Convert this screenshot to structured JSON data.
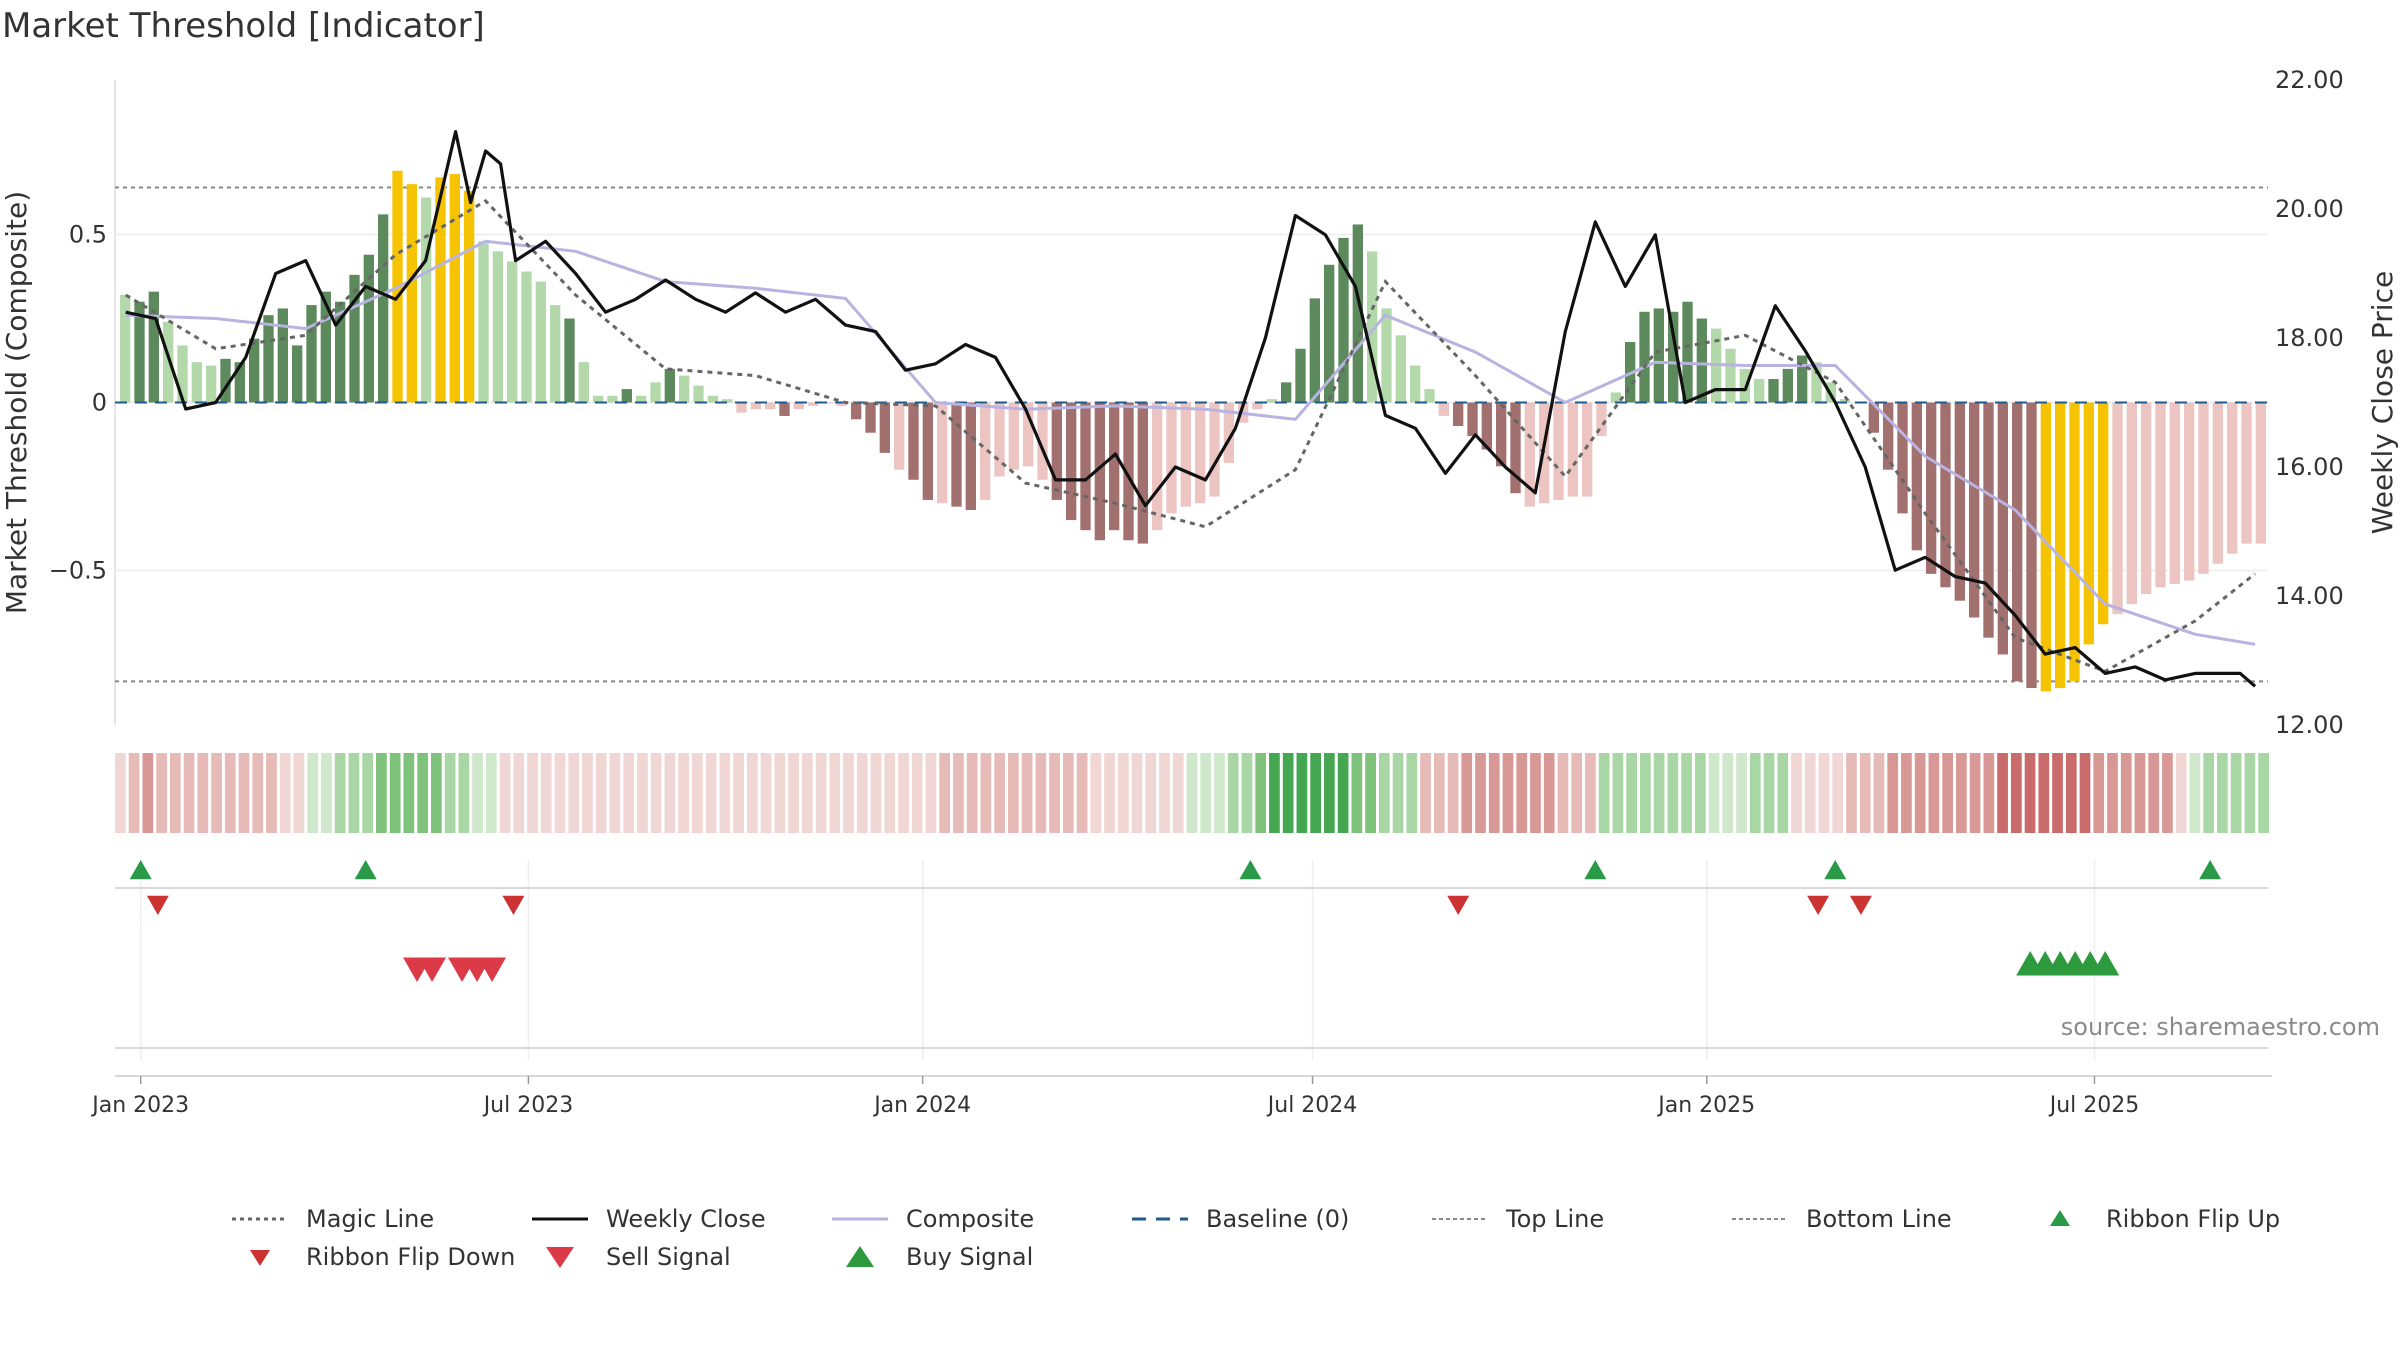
{
  "title": "Market Threshold [Indicator]",
  "source": "source: sharemaestro.com",
  "colors": {
    "green_dark": "#5d8a5d",
    "green_light": "#b3d9ab",
    "red_dark": "#a1706f",
    "red_light": "#ecc4c1",
    "gold": "#f5c300",
    "composite": "#b8b3e0",
    "close": "#111111",
    "magic": "#666666",
    "baseline": "#1f5a8a",
    "ribbon_flip_up": "#2a9a48",
    "ribbon_flip_down": "#cc3333",
    "sell": "#dd3a48",
    "buy": "#2e9a3e"
  },
  "chart_data": {
    "type": "bar",
    "title": "Market Threshold [Indicator]",
    "ylabel": "Market Threshold (Composite)",
    "y2label": "Weekly Close Price",
    "ylim": [
      -0.96,
      0.96
    ],
    "y2lim": [
      12.0,
      22.0
    ],
    "xlim": [
      "2022-12-20",
      "2025-09-20"
    ],
    "x_ticks": [
      "Jan 2023",
      "Jul 2023",
      "Jan 2024",
      "Jul 2024",
      "Jan 2025",
      "Jul 2025"
    ],
    "x_tick_dates": [
      "2023-01-01",
      "2023-07-01",
      "2024-01-01",
      "2024-07-01",
      "2025-01-01",
      "2025-07-01"
    ],
    "y_ticks": [
      "0.5",
      "0",
      "−0.5"
    ],
    "y_tick_values": [
      0.5,
      0,
      -0.5
    ],
    "y2_ticks": [
      "22.00",
      "20.00",
      "18.00",
      "16.00",
      "14.00",
      "12.00"
    ],
    "y2_tick_values": [
      22,
      20,
      18,
      16,
      14,
      12
    ],
    "top_line": 0.64,
    "bottom_line": -0.83,
    "grid": true,
    "legend_position": "bottom",
    "histogram_bars": [
      0.32,
      0.3,
      0.33,
      0.24,
      0.17,
      0.12,
      0.11,
      0.13,
      0.12,
      0.19,
      0.26,
      0.28,
      0.17,
      0.29,
      0.33,
      0.3,
      0.38,
      0.44,
      0.56,
      0.69,
      0.65,
      0.61,
      0.67,
      0.68,
      0.63,
      0.48,
      0.45,
      0.42,
      0.39,
      0.36,
      0.29,
      0.25,
      0.12,
      0.02,
      0.02,
      0.04,
      0.02,
      0.06,
      0.1,
      0.08,
      0.05,
      0.02,
      0.01,
      -0.03,
      -0.02,
      -0.02,
      -0.04,
      -0.02,
      -0.01,
      0.0,
      -0.01,
      -0.05,
      -0.09,
      -0.15,
      -0.2,
      -0.23,
      -0.29,
      -0.3,
      -0.31,
      -0.32,
      -0.29,
      -0.22,
      -0.2,
      -0.19,
      -0.23,
      -0.29,
      -0.35,
      -0.38,
      -0.41,
      -0.38,
      -0.41,
      -0.42,
      -0.38,
      -0.33,
      -0.31,
      -0.3,
      -0.28,
      -0.18,
      -0.06,
      -0.02,
      0.01,
      0.06,
      0.16,
      0.31,
      0.41,
      0.49,
      0.53,
      0.45,
      0.28,
      0.2,
      0.11,
      0.04,
      -0.04,
      -0.07,
      -0.1,
      -0.14,
      -0.19,
      -0.27,
      -0.31,
      -0.3,
      -0.29,
      -0.28,
      -0.28,
      -0.1,
      0.03,
      0.18,
      0.27,
      0.28,
      0.27,
      0.3,
      0.25,
      0.22,
      0.16,
      0.1,
      0.07,
      0.07,
      0.1,
      0.14,
      0.12,
      0.06,
      0.01,
      0.0,
      -0.09,
      -0.2,
      -0.33,
      -0.44,
      -0.51,
      -0.55,
      -0.59,
      -0.64,
      -0.7,
      -0.75,
      -0.83,
      -0.85,
      -0.86,
      -0.85,
      -0.83,
      -0.72,
      -0.66,
      -0.63,
      -0.6,
      -0.57,
      -0.55,
      -0.54,
      -0.53,
      -0.51,
      -0.48,
      -0.45,
      -0.42,
      -0.42
    ],
    "bar_kinds": [
      "gl",
      "gd",
      "gd",
      "gl",
      "gl",
      "gl",
      "gl",
      "gd",
      "gd",
      "gd",
      "gd",
      "gd",
      "gd",
      "gd",
      "gd",
      "gd",
      "gd",
      "gd",
      "gd",
      "y",
      "y",
      "gl",
      "y",
      "y",
      "y",
      "gl",
      "gl",
      "gl",
      "gl",
      "gl",
      "gl",
      "gd",
      "gl",
      "gl",
      "gl",
      "gd",
      "gl",
      "gl",
      "gd",
      "gl",
      "gl",
      "gl",
      "gl",
      "rl",
      "rl",
      "rl",
      "rd",
      "rl",
      "rl",
      "rl",
      "rl",
      "rd",
      "rd",
      "rd",
      "rl",
      "rd",
      "rd",
      "rl",
      "rd",
      "rd",
      "rl",
      "rl",
      "rl",
      "rl",
      "rl",
      "rd",
      "rd",
      "rd",
      "rd",
      "rd",
      "rd",
      "rd",
      "rl",
      "rl",
      "rl",
      "rl",
      "rl",
      "rl",
      "rl",
      "rl",
      "gl",
      "gd",
      "gd",
      "gd",
      "gd",
      "gd",
      "gd",
      "gl",
      "gl",
      "gl",
      "gl",
      "gl",
      "rl",
      "rd",
      "rd",
      "rd",
      "rd",
      "rd",
      "rl",
      "rl",
      "rl",
      "rl",
      "rl",
      "rl",
      "gl",
      "gd",
      "gd",
      "gd",
      "gd",
      "gd",
      "gd",
      "gl",
      "gl",
      "gl",
      "gl",
      "gd",
      "gd",
      "gd",
      "gl",
      "gl",
      "gl",
      "gl",
      "rd",
      "rd",
      "rd",
      "rd",
      "rd",
      "rd",
      "rd",
      "rd",
      "rd",
      "rd",
      "rd",
      "rd",
      "y",
      "y",
      "y",
      "y",
      "y",
      "rl",
      "rl",
      "rl",
      "rl",
      "rl",
      "rl",
      "rl",
      "rl",
      "rl",
      "rl",
      "rl",
      "rl",
      "rl"
    ],
    "series": [
      {
        "name": "Weekly Close",
        "x": [
          "2022-12-25",
          "2023-01-08",
          "2023-01-22",
          "2023-02-05",
          "2023-02-19",
          "2023-03-05",
          "2023-03-19",
          "2023-04-02",
          "2023-04-16",
          "2023-04-30",
          "2023-05-14",
          "2023-05-28",
          "2023-06-04",
          "2023-06-11",
          "2023-06-18",
          "2023-06-25",
          "2023-07-09",
          "2023-07-23",
          "2023-08-06",
          "2023-08-20",
          "2023-09-03",
          "2023-09-17",
          "2023-10-01",
          "2023-10-15",
          "2023-10-29",
          "2023-11-12",
          "2023-11-26",
          "2023-12-10",
          "2023-12-24",
          "2024-01-07",
          "2024-01-21",
          "2024-02-04",
          "2024-02-18",
          "2024-03-03",
          "2024-03-17",
          "2024-03-31",
          "2024-04-14",
          "2024-04-28",
          "2024-05-12",
          "2024-05-26",
          "2024-06-09",
          "2024-06-23",
          "2024-07-07",
          "2024-07-21",
          "2024-08-04",
          "2024-08-18",
          "2024-09-01",
          "2024-09-15",
          "2024-09-29",
          "2024-10-13",
          "2024-10-27",
          "2024-11-10",
          "2024-11-24",
          "2024-12-08",
          "2024-12-22",
          "2025-01-05",
          "2025-01-19",
          "2025-02-02",
          "2025-02-16",
          "2025-03-02",
          "2025-03-16",
          "2025-03-30",
          "2025-04-13",
          "2025-04-27",
          "2025-05-11",
          "2025-05-25",
          "2025-06-08",
          "2025-06-22",
          "2025-07-06",
          "2025-07-20",
          "2025-08-03",
          "2025-08-17",
          "2025-09-07",
          "2025-09-14"
        ],
        "values": [
          18.4,
          18.3,
          16.9,
          17.0,
          17.7,
          19.0,
          19.2,
          18.2,
          18.8,
          18.6,
          19.2,
          21.2,
          20.1,
          20.9,
          20.7,
          19.2,
          19.5,
          19.0,
          18.4,
          18.6,
          18.9,
          18.6,
          18.4,
          18.7,
          18.4,
          18.6,
          18.2,
          18.1,
          17.5,
          17.6,
          17.9,
          17.7,
          16.9,
          15.8,
          15.8,
          16.2,
          15.4,
          16.0,
          15.8,
          16.6,
          18.0,
          19.9,
          19.6,
          18.8,
          16.8,
          16.6,
          15.9,
          16.5,
          16.0,
          15.6,
          18.1,
          19.8,
          18.8,
          19.6,
          17.0,
          17.2,
          17.2,
          18.5,
          17.8,
          17.0,
          16.0,
          14.4,
          14.6,
          14.3,
          14.2,
          13.7,
          13.1,
          13.2,
          12.8,
          12.9,
          12.7,
          12.8,
          12.8,
          12.6
        ]
      },
      {
        "name": "Composite",
        "x": [
          "2022-12-25",
          "2023-02-05",
          "2023-03-19",
          "2023-04-30",
          "2023-06-11",
          "2023-07-23",
          "2023-09-03",
          "2023-10-15",
          "2023-11-26",
          "2024-01-07",
          "2024-02-18",
          "2024-03-31",
          "2024-05-12",
          "2024-06-23",
          "2024-08-04",
          "2024-09-15",
          "2024-10-27",
          "2024-12-08",
          "2025-01-19",
          "2025-03-02",
          "2025-04-13",
          "2025-05-25",
          "2025-07-06",
          "2025-08-17",
          "2025-09-14"
        ],
        "values": [
          0.26,
          0.25,
          0.22,
          0.34,
          0.48,
          0.45,
          0.36,
          0.34,
          0.31,
          0.0,
          -0.02,
          -0.01,
          -0.02,
          -0.05,
          0.26,
          0.15,
          0.0,
          0.12,
          0.11,
          0.11,
          -0.16,
          -0.32,
          -0.6,
          -0.69,
          -0.72
        ]
      },
      {
        "name": "Magic Line",
        "x": [
          "2022-12-25",
          "2023-02-05",
          "2023-03-19",
          "2023-04-30",
          "2023-06-11",
          "2023-07-23",
          "2023-09-03",
          "2023-10-15",
          "2023-11-26",
          "2024-01-07",
          "2024-02-18",
          "2024-03-31",
          "2024-05-12",
          "2024-06-23",
          "2024-08-04",
          "2024-09-15",
          "2024-10-27",
          "2024-12-08",
          "2025-01-19",
          "2025-03-02",
          "2025-04-13",
          "2025-05-25",
          "2025-07-06",
          "2025-08-17",
          "2025-09-14"
        ],
        "values": [
          0.32,
          0.16,
          0.2,
          0.44,
          0.6,
          0.32,
          0.1,
          0.08,
          0.0,
          -0.01,
          -0.24,
          -0.3,
          -0.37,
          -0.2,
          0.36,
          0.08,
          -0.22,
          0.15,
          0.2,
          0.06,
          -0.33,
          -0.7,
          -0.8,
          -0.65,
          -0.51
        ]
      },
      {
        "name": "Baseline (0)",
        "values": [
          0
        ]
      },
      {
        "name": "Top Line",
        "values": [
          0.64
        ]
      },
      {
        "name": "Bottom Line",
        "values": [
          -0.83
        ]
      }
    ],
    "ribbon_strip": [
      -1,
      -2,
      -3,
      -2,
      -2,
      -2,
      -2,
      -2,
      -2,
      -2,
      -2,
      -2,
      -1,
      -1,
      1,
      1,
      2,
      2,
      2,
      3,
      3,
      3,
      3,
      3,
      2,
      2,
      1,
      1,
      -1,
      -1,
      -1,
      -1,
      -1,
      -1,
      -1,
      -1,
      -1,
      -1,
      -1,
      -1,
      -1,
      -1,
      -1,
      -1,
      -1,
      -1,
      -1,
      -1,
      -1,
      -1,
      -1,
      -1,
      -1,
      -1,
      -1,
      -1,
      -1,
      -1,
      -1,
      -1,
      -2,
      -2,
      -2,
      -2,
      -2,
      -2,
      -2,
      -2,
      -2,
      -2,
      -2,
      -1,
      -1,
      -1,
      -1,
      -1,
      -1,
      -1,
      1,
      1,
      1,
      2,
      2,
      3,
      4,
      4,
      4,
      4,
      4,
      4,
      3,
      3,
      2,
      2,
      2,
      -2,
      -2,
      -2,
      -3,
      -3,
      -3,
      -3,
      -3,
      -3,
      -3,
      -2,
      -2,
      -2,
      2,
      2,
      2,
      2,
      2,
      2,
      2,
      2,
      1,
      1,
      1,
      2,
      2,
      2,
      -1,
      -1,
      -1,
      -1,
      -2,
      -2,
      -2,
      -3,
      -3,
      -3,
      -3,
      -3,
      -3,
      -3,
      -3,
      -4,
      -4,
      -4,
      -4,
      -4,
      -4,
      -4,
      -3,
      -3,
      -3,
      -3,
      -3,
      -3,
      -1,
      1,
      2,
      2,
      2,
      2,
      2
    ],
    "ribbon_flip_up": [
      "2023-01-01",
      "2023-04-16",
      "2024-06-02",
      "2024-11-10",
      "2025-03-02",
      "2025-08-24"
    ],
    "ribbon_flip_down": [
      "2023-01-09",
      "2023-06-24",
      "2024-09-07",
      "2025-02-22",
      "2025-03-14"
    ],
    "sell_signals": [
      "2023-05-10",
      "2023-05-17",
      "2023-05-31",
      "2023-06-07",
      "2023-06-14"
    ],
    "buy_signals": [
      "2025-06-01",
      "2025-06-08",
      "2025-06-15",
      "2025-06-22",
      "2025-06-29",
      "2025-07-06"
    ]
  },
  "legend": [
    {
      "label": "Magic Line",
      "sym": "dot-line",
      "color": "#666666"
    },
    {
      "label": "Weekly Close",
      "sym": "solid",
      "color": "#111111"
    },
    {
      "label": "Composite",
      "sym": "solid",
      "color": "#b8b3e0"
    },
    {
      "label": "Baseline (0)",
      "sym": "dash",
      "color": "#1f5a8a"
    },
    {
      "label": "Top Line",
      "sym": "fine-dash",
      "color": "#888888"
    },
    {
      "label": "Bottom Line",
      "sym": "fine-dash",
      "color": "#888888"
    },
    {
      "label": "Ribbon Flip Up",
      "sym": "tri-up-small",
      "color": "#2a9a48"
    },
    {
      "label": "Ribbon Flip Down",
      "sym": "tri-down-small",
      "color": "#cc3333"
    },
    {
      "label": "Sell Signal",
      "sym": "tri-down",
      "color": "#dd3a48"
    },
    {
      "label": "Buy Signal",
      "sym": "tri-up",
      "color": "#2e9a3e"
    }
  ]
}
